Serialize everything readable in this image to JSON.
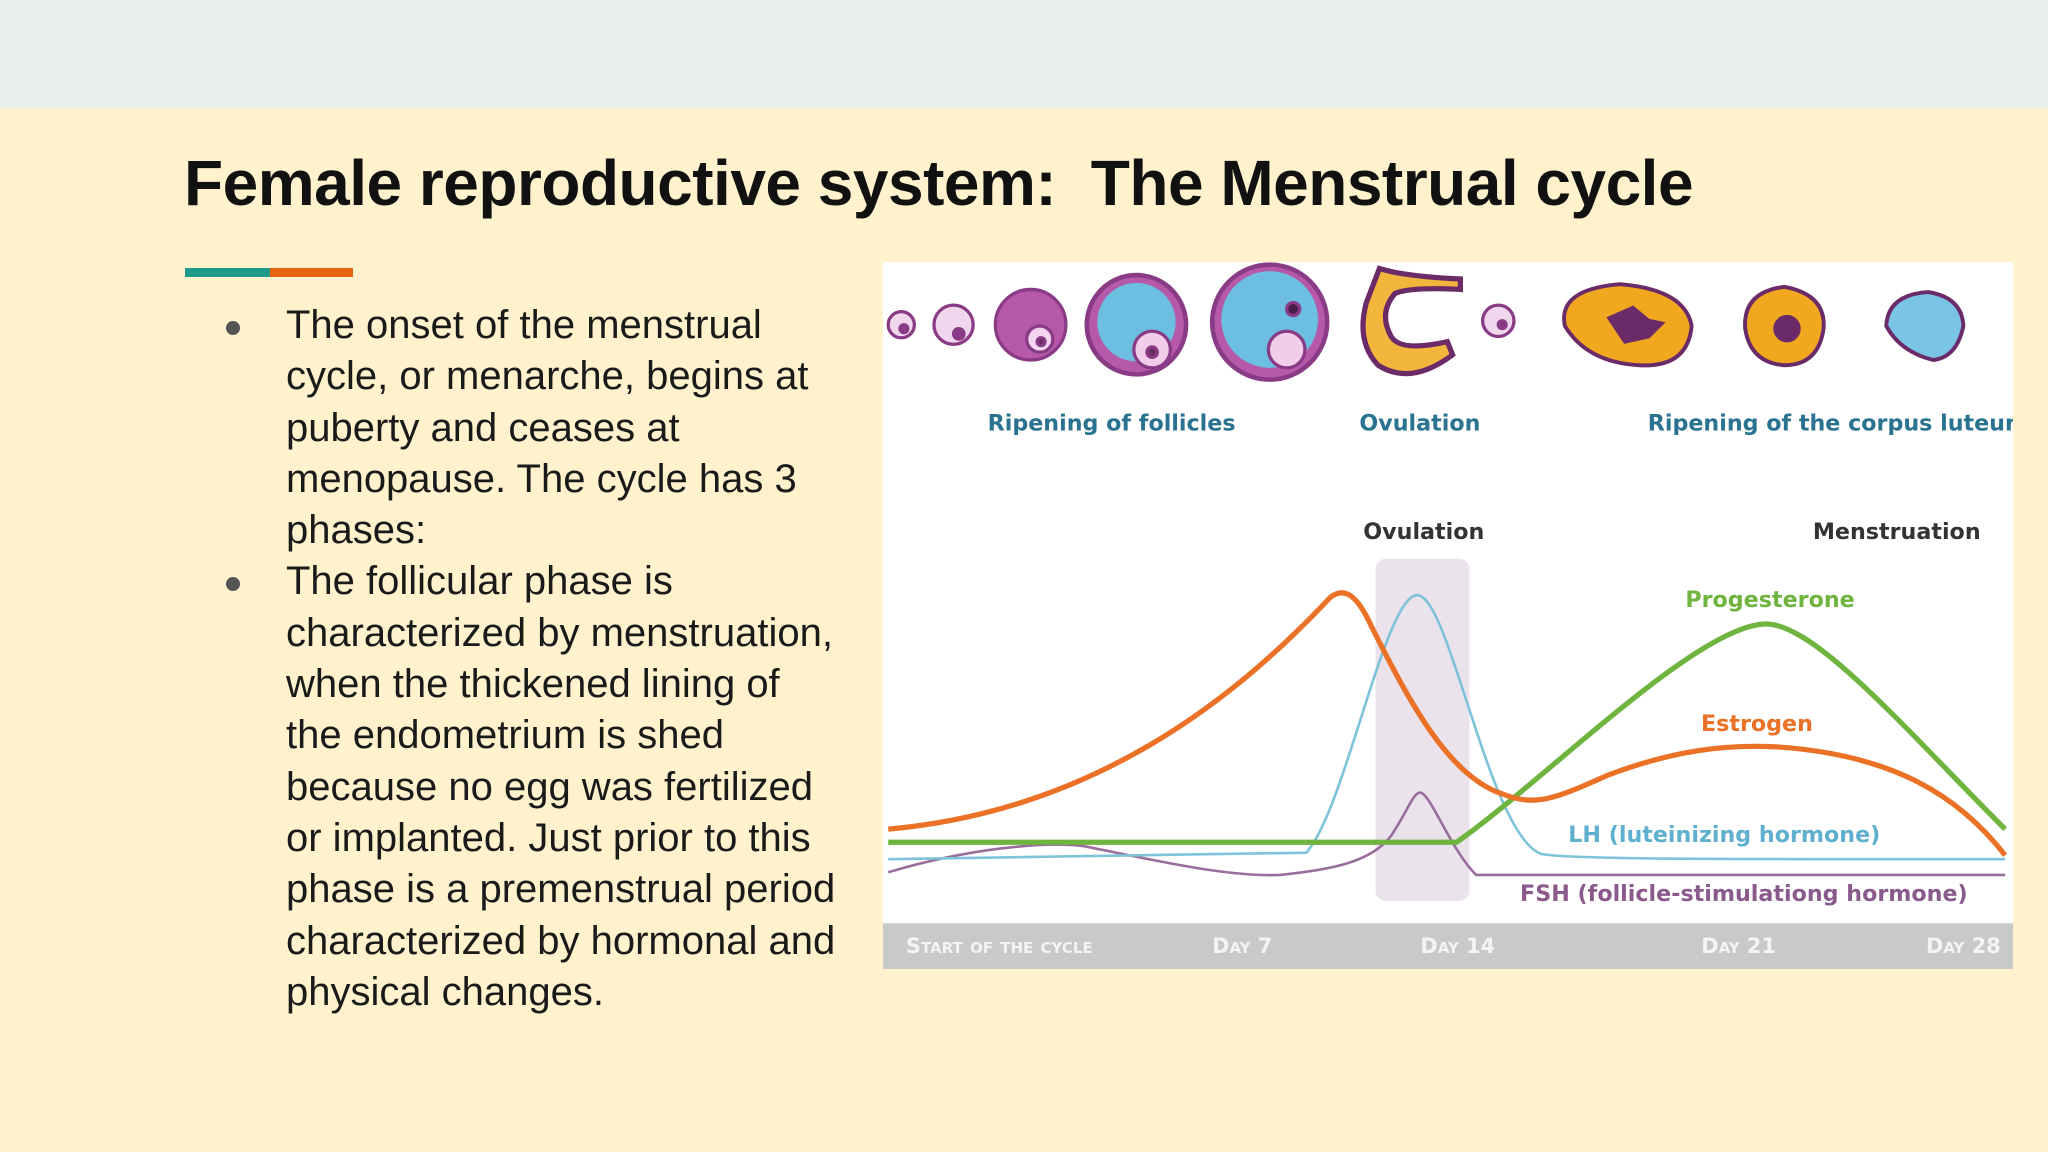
{
  "header": {
    "title": "Female reproductive system:  The Menstrual cycle"
  },
  "bullets": [
    "The onset of the menstrual cycle, or menarche, begins at puberty and ceases at menopause.  The cycle has 3 phases:",
    "The follicular phase is characterized by menstruation, when the thickened lining of the endometrium is shed because no egg was fertilized or implanted. Just prior to this phase is a premenstrual period characterized by hormonal and physical changes."
  ],
  "figure": {
    "stages": [
      "Ripening of follicles",
      "Ovulation",
      "Ripening of the corpus luteum"
    ],
    "events": [
      "Ovulation",
      "Menstruation"
    ],
    "hormones": [
      "Progesterone",
      "Estrogen",
      "LH (luteinizing hormone)",
      "FSH (follicle-stimulationg hormone)"
    ],
    "timeline": [
      "Start of the cycle",
      "Day 7",
      "Day 14",
      "Day 21",
      "Day 28"
    ]
  }
}
